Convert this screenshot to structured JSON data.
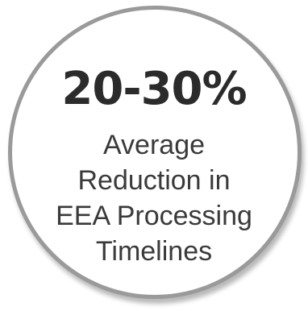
{
  "stat": {
    "value": "20-30%",
    "caption_lines": [
      "Average",
      "Reduction in",
      "EEA Processing",
      "Timelines"
    ]
  },
  "colors": {
    "circle_border": "#9a9a9a",
    "text_primary": "#2b2b2b",
    "text_caption": "#3a3a3a",
    "background": "#ffffff"
  }
}
